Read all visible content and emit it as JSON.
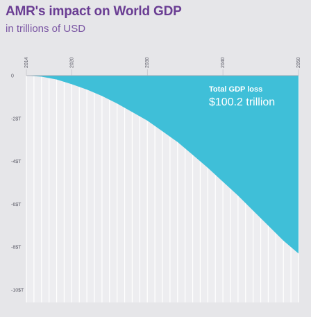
{
  "chart_data": {
    "type": "area",
    "title": "AMR's impact on World GDP",
    "subtitle": "in trillions of USD",
    "x_tick_labels": [
      "2014",
      "2020",
      "2030",
      "2040",
      "2050"
    ],
    "x_ticks": [
      2014,
      2020,
      2030,
      2040,
      2050
    ],
    "y_tick_labels": [
      "0",
      "-2$T",
      "-4$T",
      "-6$T",
      "-8$T",
      "-10$T"
    ],
    "y_ticks": [
      0,
      -2,
      -4,
      -6,
      -8,
      -10
    ],
    "xlim": [
      2014,
      2050
    ],
    "ylim": [
      -10,
      0
    ],
    "x": [
      2014,
      2016,
      2018,
      2020,
      2022,
      2024,
      2026,
      2028,
      2030,
      2032,
      2034,
      2036,
      2038,
      2040,
      2042,
      2044,
      2046,
      2048,
      2050
    ],
    "values": [
      0,
      -0.05,
      -0.18,
      -0.4,
      -0.65,
      -0.95,
      -1.3,
      -1.7,
      -2.1,
      -2.6,
      -3.1,
      -3.7,
      -4.3,
      -4.95,
      -5.6,
      -6.3,
      -7.0,
      -7.7,
      -8.3
    ],
    "annotation": {
      "label": "Total GDP loss",
      "value": "$100.2 trillion"
    },
    "colors": {
      "fill": "#3fbfd8",
      "title": "#6a3d93",
      "subtitle": "#7a55a3",
      "background": "#e6e6e9"
    },
    "grid": true
  }
}
